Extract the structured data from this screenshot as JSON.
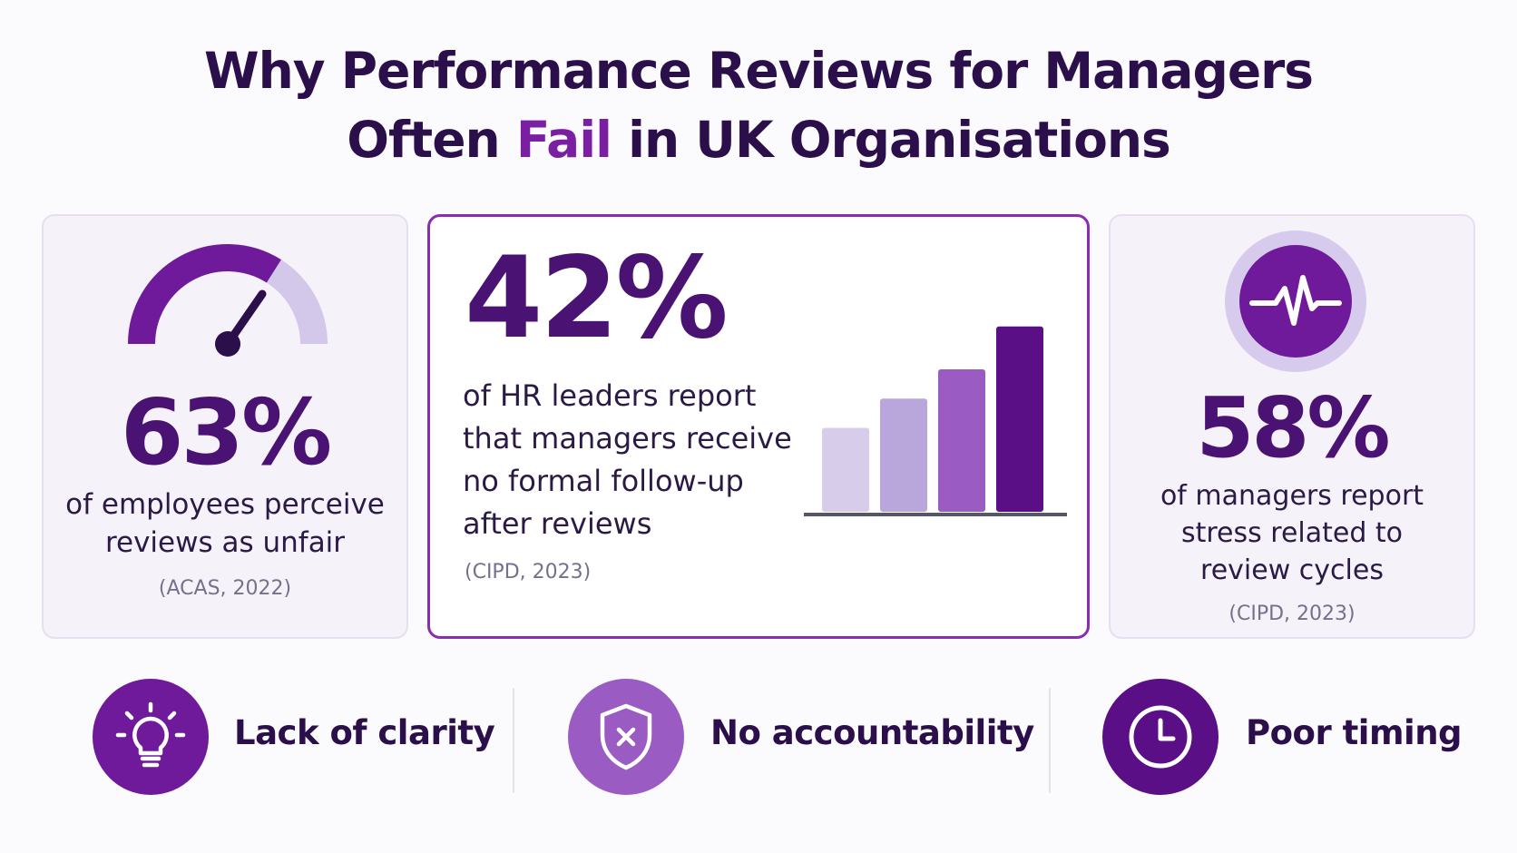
{
  "title": {
    "line1": "Why Performance Reviews for Managers",
    "line2_pre": "Often ",
    "line2_accent": "Fail",
    "line2_post": " in UK Organisations"
  },
  "stats": [
    {
      "value": "63%",
      "description": [
        "of employees perceive",
        "reviews as unfair"
      ],
      "source": "(ACAS, 2022)",
      "icon": "gauge-icon"
    },
    {
      "value": "42%",
      "description": [
        "of HR leaders report",
        "that managers receive",
        "no formal follow-up",
        "after reviews"
      ],
      "source": "(CIPD, 2023)",
      "icon": "bar-chart-icon"
    },
    {
      "value": "58%",
      "description": [
        "of managers report",
        "stress related to",
        "review cycles"
      ],
      "source": "(CIPD, 2023)",
      "icon": "pulse-icon"
    }
  ],
  "gauge": {
    "fraction": 0.68
  },
  "decorative_bars": {
    "values": [
      0.43,
      0.58,
      0.73,
      0.95
    ],
    "colors": [
      "#d7cdea",
      "#b9a6db",
      "#9a5bc2",
      "#5a0f86"
    ]
  },
  "reasons": [
    {
      "label": "Lack of clarity",
      "icon": "lightbulb-icon"
    },
    {
      "label": "No accountability",
      "icon": "shield-x-icon"
    },
    {
      "label": "Poor timing",
      "icon": "clock-icon"
    }
  ],
  "colors": {
    "accent": "#7a1fa2",
    "dark": "#2a0f4a",
    "primary": "#5a0f86",
    "light": "#b9a6db",
    "mid": "#9a5bc2"
  }
}
